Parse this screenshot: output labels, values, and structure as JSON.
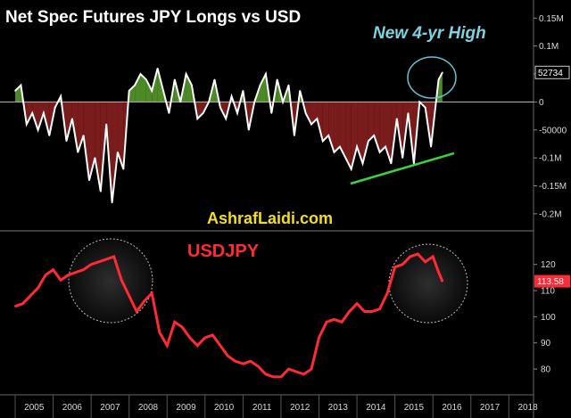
{
  "chart_data": [
    {
      "type": "area",
      "title": "Net Spec Futures JPY Longs vs USD",
      "annotation": "New 4-yr High",
      "watermark": "AshrafLaidi.com",
      "last_value": 52734,
      "last_value_label": "52734",
      "y_ticks": [
        {
          "value": 150000,
          "label": "0.15M"
        },
        {
          "value": 100000,
          "label": "0.1M"
        },
        {
          "value": 50000,
          "label": "50000"
        },
        {
          "value": 0,
          "label": "0"
        },
        {
          "value": -50000,
          "label": "-50000"
        },
        {
          "value": -100000,
          "label": "-0.1M"
        },
        {
          "value": -150000,
          "label": "-0.15M"
        },
        {
          "value": -200000,
          "label": "-0.2M"
        }
      ],
      "ylim": [
        -205000,
        160000
      ],
      "positive_color": "#4c8a26",
      "negative_color": "#7a1c1c",
      "series": [
        {
          "x": [
            2005.0,
            2005.15,
            2005.3,
            2005.45,
            2005.6,
            2005.75,
            2005.9,
            2006.05,
            2006.2,
            2006.35,
            2006.5,
            2006.65,
            2006.8,
            2006.95,
            2007.1,
            2007.25,
            2007.4,
            2007.55,
            2007.7,
            2007.85,
            2008.0,
            2008.15,
            2008.3,
            2008.45,
            2008.6,
            2008.75,
            2008.9,
            2009.05,
            2009.2,
            2009.35,
            2009.5,
            2009.65,
            2009.8,
            2009.95,
            2010.1,
            2010.25,
            2010.4,
            2010.55,
            2010.7,
            2010.85,
            2011.0,
            2011.15,
            2011.3,
            2011.45,
            2011.6,
            2011.75,
            2011.9,
            2012.05,
            2012.2,
            2012.35,
            2012.5,
            2012.65,
            2012.8,
            2012.95,
            2013.1,
            2013.25,
            2013.4,
            2013.55,
            2013.7,
            2013.85,
            2014.0,
            2014.15,
            2014.3,
            2014.45,
            2014.6,
            2014.75,
            2014.9,
            2015.05,
            2015.2,
            2015.35,
            2015.5,
            2015.65,
            2015.8,
            2015.95,
            2016.05,
            2016.15,
            2016.25
          ],
          "values": [
            20000,
            30000,
            -40000,
            -20000,
            -50000,
            -20000,
            -60000,
            -10000,
            10000,
            -70000,
            -30000,
            -90000,
            -60000,
            -140000,
            -100000,
            -160000,
            -40000,
            -180000,
            -90000,
            -120000,
            20000,
            30000,
            50000,
            40000,
            20000,
            60000,
            20000,
            -20000,
            40000,
            0,
            50000,
            30000,
            -30000,
            -20000,
            0,
            40000,
            -10000,
            -30000,
            10000,
            -20000,
            20000,
            -50000,
            0,
            30000,
            50000,
            -20000,
            40000,
            0,
            30000,
            -60000,
            20000,
            -20000,
            -40000,
            -30000,
            -70000,
            -60000,
            -90000,
            -80000,
            -100000,
            -120000,
            -80000,
            -110000,
            -70000,
            -60000,
            -90000,
            -80000,
            -110000,
            -30000,
            -100000,
            -20000,
            -110000,
            0,
            -10000,
            -80000,
            -20000,
            40000,
            52734
          ]
        }
      ]
    },
    {
      "type": "line",
      "title": "USDJPY",
      "last_value": 113.58,
      "last_value_label": "113.58",
      "y_ticks": [
        {
          "value": 120,
          "label": "120"
        },
        {
          "value": 110,
          "label": "110"
        },
        {
          "value": 100,
          "label": "100"
        },
        {
          "value": 90,
          "label": "90"
        },
        {
          "value": 80,
          "label": "80"
        }
      ],
      "ylim": [
        71.5,
        131.5
      ],
      "line_color": "#ff2a35",
      "x_ticks": [
        "2005",
        "2006",
        "2007",
        "2008",
        "2009",
        "2010",
        "2011",
        "2012",
        "2013",
        "2014",
        "2015",
        "2016",
        "2017",
        "2018"
      ],
      "xlim": [
        2004.6,
        2018.65
      ],
      "series": [
        {
          "x": [
            2005.0,
            2005.2,
            2005.4,
            2005.6,
            2005.8,
            2006.0,
            2006.2,
            2006.4,
            2006.6,
            2006.8,
            2007.0,
            2007.2,
            2007.4,
            2007.6,
            2007.8,
            2008.0,
            2008.2,
            2008.4,
            2008.6,
            2008.8,
            2009.0,
            2009.2,
            2009.4,
            2009.6,
            2009.8,
            2010.0,
            2010.2,
            2010.4,
            2010.6,
            2010.8,
            2011.0,
            2011.2,
            2011.4,
            2011.6,
            2011.8,
            2012.0,
            2012.2,
            2012.4,
            2012.6,
            2012.8,
            2013.0,
            2013.2,
            2013.4,
            2013.6,
            2013.8,
            2014.0,
            2014.2,
            2014.4,
            2014.6,
            2014.8,
            2015.0,
            2015.2,
            2015.4,
            2015.6,
            2015.8,
            2016.0,
            2016.15,
            2016.25
          ],
          "values": [
            104,
            105,
            108,
            111,
            116,
            118,
            114,
            116,
            117,
            118,
            120,
            121,
            122,
            123,
            114,
            108,
            102,
            106,
            109,
            94,
            89,
            98,
            96,
            92,
            89,
            92,
            93,
            89,
            85,
            83,
            82,
            83,
            81,
            78,
            77,
            77,
            80,
            79,
            78,
            80,
            92,
            98,
            99,
            98,
            102,
            105,
            102,
            102,
            103,
            109,
            119,
            120,
            123,
            124,
            121,
            123,
            117,
            113.58
          ]
        }
      ]
    }
  ]
}
